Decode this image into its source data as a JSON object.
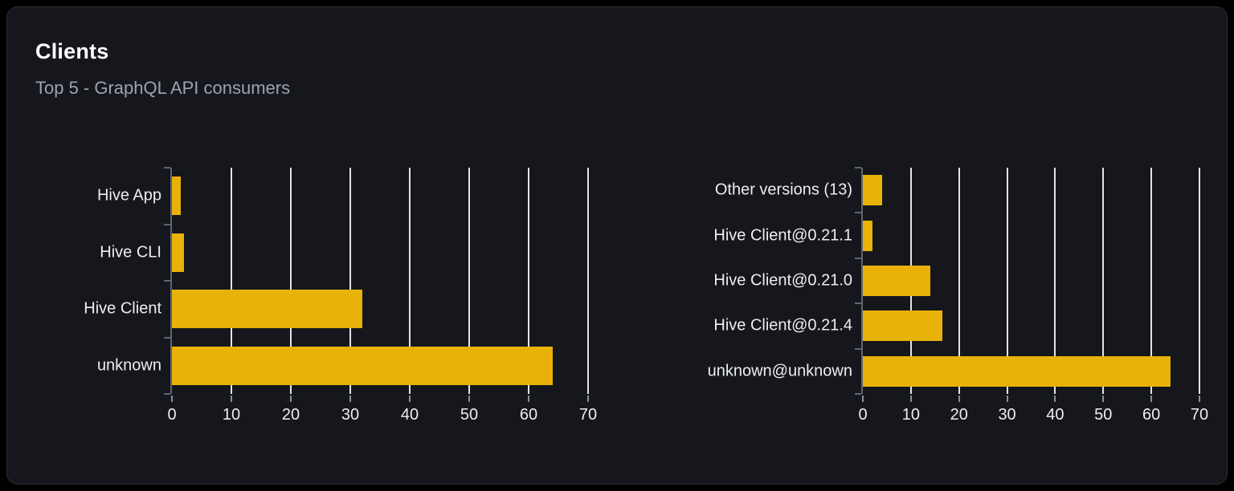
{
  "card": {
    "title": "Clients",
    "subtitle": "Top 5 - GraphQL API consumers"
  },
  "colors": {
    "page_bg": "#000000",
    "card_bg": "#15171c",
    "card_border": "#2b2e35",
    "bar": "#e9b208",
    "gridline": "#e2e4ea",
    "axis": "#606570",
    "text_primary": "#ffffff",
    "text_secondary": "#9ca3af",
    "tick_label": "#eceef1"
  },
  "chart_data": [
    {
      "type": "bar",
      "orientation": "horizontal",
      "name": "clients-by-name",
      "categories": [
        "Hive App",
        "Hive CLI",
        "Hive Client",
        "unknown"
      ],
      "values": [
        1.5,
        2,
        32,
        64
      ],
      "x_ticks": [
        0,
        10,
        20,
        30,
        40,
        50,
        60,
        70
      ],
      "xlim": [
        0,
        70
      ],
      "grid": true,
      "legend": "none",
      "bar_band_ratio": 0.68
    },
    {
      "type": "bar",
      "orientation": "horizontal",
      "name": "clients-by-version",
      "categories": [
        "Other versions (13)",
        "Hive Client@0.21.1",
        "Hive Client@0.21.0",
        "Hive Client@0.21.4",
        "unknown@unknown"
      ],
      "values": [
        4,
        2,
        14,
        16.5,
        64
      ],
      "x_ticks": [
        0,
        10,
        20,
        30,
        40,
        50,
        60,
        70
      ],
      "xlim": [
        0,
        70
      ],
      "grid": true,
      "legend": "none",
      "bar_band_ratio": 0.68
    }
  ]
}
